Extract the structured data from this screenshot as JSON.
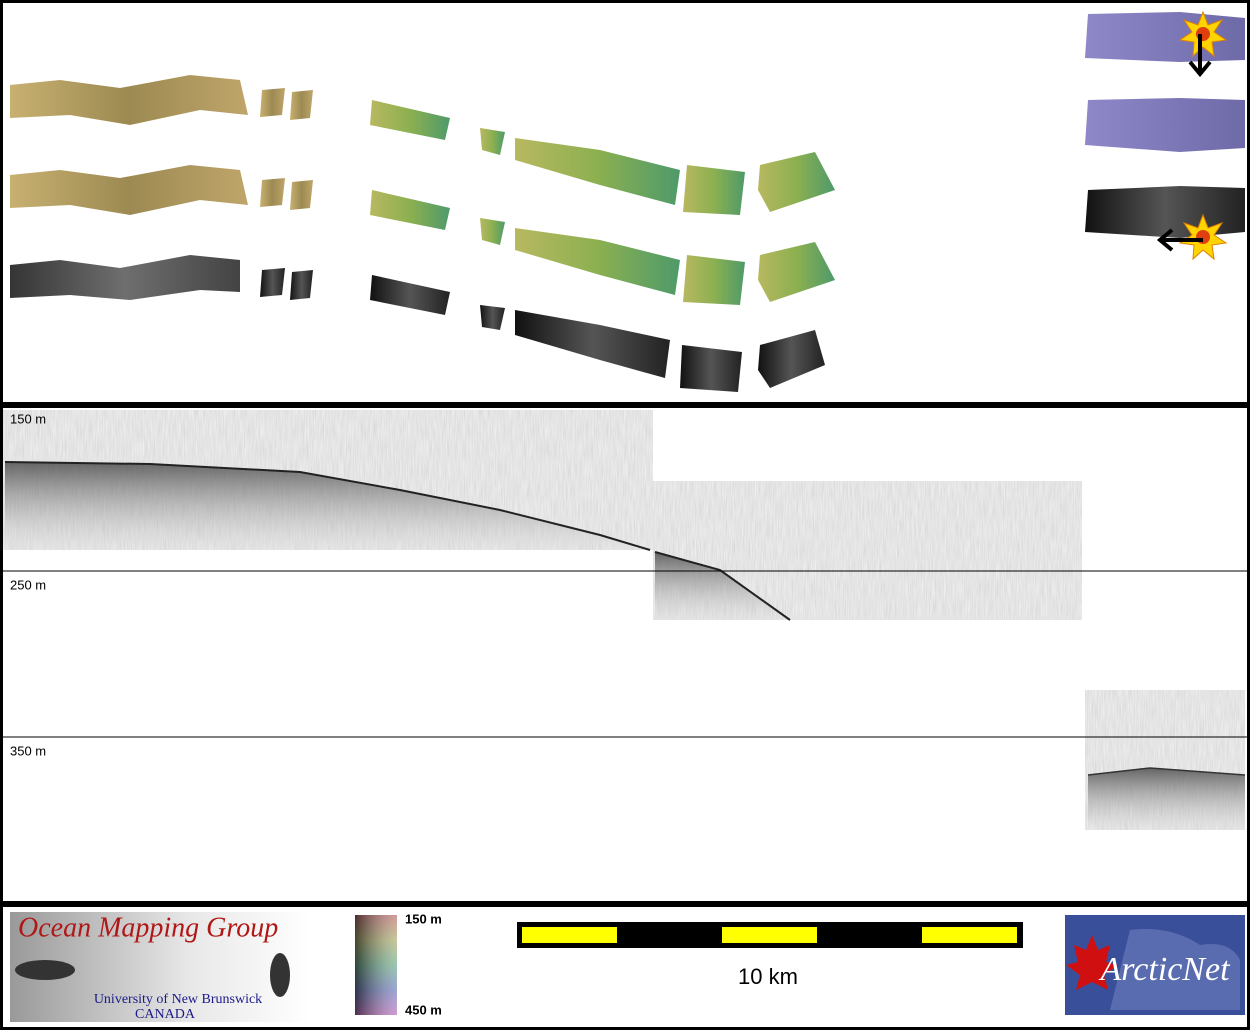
{
  "profile": {
    "depth_labels": [
      "150 m",
      "250 m",
      "350 m"
    ]
  },
  "omg_logo": {
    "title": "Ocean Mapping Group",
    "university": "University of New Brunswick",
    "country": "CANADA"
  },
  "colorbar": {
    "top_label": "150 m",
    "bottom_label": "450 m"
  },
  "scale_bar": {
    "label": "10 km"
  },
  "arcticnet_logo": {
    "name": "ArcticNet"
  }
}
